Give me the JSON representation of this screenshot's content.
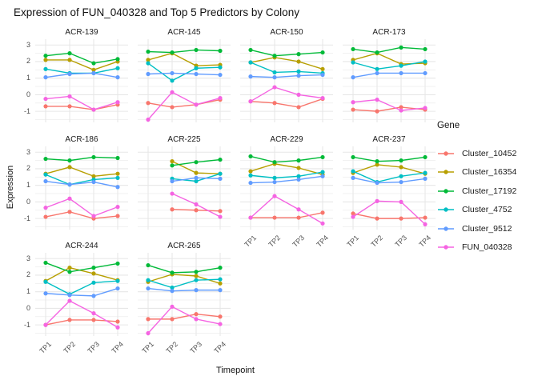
{
  "title": "Expression of FUN_040328 and Top 5 Predictors by Colony",
  "chart_data": {
    "type": "line",
    "facet_by": "Colony",
    "categories": [
      "TP1",
      "TP2",
      "TP3",
      "TP4"
    ],
    "xlabel": "Timepoint",
    "ylabel": "Expression",
    "legend_title": "Gene",
    "legend_position": "right",
    "ylim": [
      -1.67,
      3.35
    ],
    "yticks": [
      3,
      2,
      1,
      0,
      -1
    ],
    "yticks_minor": [
      2.5,
      1.5,
      0.5,
      -0.5,
      -1.5
    ],
    "grid": true,
    "point_marker": "circle",
    "series": [
      {
        "name": "Cluster_10452",
        "color": "#F8766D"
      },
      {
        "name": "Cluster_16354",
        "color": "#B79F00"
      },
      {
        "name": "Cluster_17192",
        "color": "#00BA38"
      },
      {
        "name": "Cluster_4752",
        "color": "#00BFC4"
      },
      {
        "name": "Cluster_9512",
        "color": "#619CFF"
      },
      {
        "name": "FUN_040328",
        "color": "#F564E2"
      }
    ],
    "facets": [
      {
        "name": "ACR-139",
        "values": {
          "Cluster_10452": [
            -0.7,
            -0.7,
            -0.9,
            -0.6
          ],
          "Cluster_16354": [
            2.1,
            2.1,
            1.5,
            2.0
          ],
          "Cluster_17192": [
            2.35,
            2.5,
            1.9,
            2.15
          ],
          "Cluster_4752": [
            1.55,
            1.3,
            1.3,
            1.6
          ],
          "Cluster_9512": [
            1.05,
            1.25,
            1.3,
            1.05
          ],
          "FUN_040328": [
            -0.25,
            -0.1,
            -0.9,
            -0.45
          ]
        }
      },
      {
        "name": "ACR-145",
        "values": {
          "Cluster_10452": [
            -0.5,
            -0.75,
            -0.6,
            -0.3
          ],
          "Cluster_16354": [
            2.1,
            2.5,
            1.75,
            1.8
          ],
          "Cluster_17192": [
            2.6,
            2.55,
            2.7,
            2.65
          ],
          "Cluster_4752": [
            1.9,
            0.85,
            1.6,
            1.65
          ],
          "Cluster_9512": [
            1.25,
            1.3,
            1.25,
            1.2
          ],
          "FUN_040328": [
            -1.5,
            0.15,
            -0.6,
            -0.2
          ]
        }
      },
      {
        "name": "ACR-150",
        "values": {
          "Cluster_10452": [
            -0.4,
            -0.5,
            -0.75,
            -0.25
          ],
          "Cluster_16354": [
            1.95,
            2.25,
            2.0,
            1.55
          ],
          "Cluster_17192": [
            2.7,
            2.35,
            2.45,
            2.55
          ],
          "Cluster_4752": [
            1.95,
            1.35,
            1.4,
            1.3
          ],
          "Cluster_9512": [
            1.1,
            1.05,
            1.15,
            1.2
          ],
          "FUN_040328": [
            -0.4,
            0.45,
            0.0,
            -0.2
          ]
        }
      },
      {
        "name": "ACR-173",
        "values": {
          "Cluster_10452": [
            -0.9,
            -1.0,
            -0.75,
            -0.9
          ],
          "Cluster_16354": [
            2.1,
            2.5,
            1.85,
            1.9
          ],
          "Cluster_17192": [
            2.75,
            2.55,
            2.85,
            2.75
          ],
          "Cluster_4752": [
            1.95,
            1.55,
            1.75,
            2.0
          ],
          "Cluster_9512": [
            1.05,
            1.3,
            1.3,
            1.3
          ],
          "FUN_040328": [
            -0.45,
            -0.3,
            -0.95,
            -0.8
          ]
        }
      },
      {
        "name": "ACR-186",
        "values": {
          "Cluster_10452": [
            -0.9,
            -0.6,
            -1.0,
            -0.85
          ],
          "Cluster_16354": [
            1.7,
            2.1,
            1.55,
            1.7
          ],
          "Cluster_17192": [
            2.6,
            2.5,
            2.7,
            2.65
          ],
          "Cluster_4752": [
            1.65,
            1.05,
            1.35,
            1.45
          ],
          "Cluster_9512": [
            1.25,
            1.05,
            1.2,
            0.9
          ],
          "FUN_040328": [
            -0.35,
            0.2,
            -0.85,
            -0.3
          ]
        }
      },
      {
        "name": "ACR-225",
        "values": {
          "Cluster_10452": [
            null,
            -0.45,
            -0.5,
            -0.55
          ],
          "Cluster_16354": [
            null,
            2.45,
            1.75,
            1.7
          ],
          "Cluster_17192": [
            null,
            2.2,
            2.4,
            2.55
          ],
          "Cluster_4752": [
            null,
            1.4,
            1.25,
            1.7
          ],
          "Cluster_9512": [
            null,
            1.25,
            1.45,
            1.4
          ],
          "FUN_040328": [
            null,
            0.5,
            -0.15,
            -0.9
          ]
        }
      },
      {
        "name": "ACR-229",
        "values": {
          "Cluster_10452": [
            -0.95,
            -0.95,
            -0.95,
            -0.65
          ],
          "Cluster_16354": [
            1.85,
            2.3,
            2.05,
            1.65
          ],
          "Cluster_17192": [
            2.75,
            2.4,
            2.5,
            2.7
          ],
          "Cluster_4752": [
            1.6,
            1.45,
            1.55,
            1.8
          ],
          "Cluster_9512": [
            1.15,
            1.2,
            1.35,
            1.55
          ],
          "FUN_040328": [
            -0.95,
            0.35,
            -0.45,
            -1.3
          ]
        }
      },
      {
        "name": "ACR-237",
        "values": {
          "Cluster_10452": [
            -0.7,
            -1.0,
            -1.0,
            -0.95
          ],
          "Cluster_16354": [
            1.75,
            2.25,
            2.1,
            1.7
          ],
          "Cluster_17192": [
            2.7,
            2.45,
            2.5,
            2.7
          ],
          "Cluster_4752": [
            1.85,
            1.2,
            1.55,
            1.75
          ],
          "Cluster_9512": [
            1.45,
            1.15,
            1.2,
            1.4
          ],
          "FUN_040328": [
            -0.9,
            0.05,
            0.0,
            -1.35
          ]
        }
      },
      {
        "name": "ACR-244",
        "values": {
          "Cluster_10452": [
            -1.0,
            -0.7,
            -0.7,
            -0.8
          ],
          "Cluster_16354": [
            1.65,
            2.45,
            2.1,
            1.7
          ],
          "Cluster_17192": [
            2.75,
            2.2,
            2.45,
            2.7
          ],
          "Cluster_4752": [
            1.6,
            0.85,
            1.55,
            1.65
          ],
          "Cluster_9512": [
            0.9,
            0.8,
            0.75,
            1.2
          ],
          "FUN_040328": [
            -1.0,
            0.45,
            -0.3,
            -1.15
          ]
        }
      },
      {
        "name": "ACR-265",
        "values": {
          "Cluster_10452": [
            -0.65,
            -0.65,
            -0.35,
            -0.5
          ],
          "Cluster_16354": [
            1.6,
            2.05,
            1.95,
            1.5
          ],
          "Cluster_17192": [
            2.6,
            2.15,
            2.2,
            2.45
          ],
          "Cluster_4752": [
            1.7,
            1.25,
            1.7,
            1.75
          ],
          "Cluster_9512": [
            1.2,
            1.05,
            1.1,
            1.1
          ],
          "FUN_040328": [
            -1.5,
            0.1,
            -0.65,
            -0.95
          ]
        }
      }
    ],
    "colors": {
      "grid_major": "#E7E7E7",
      "grid_minor": "#F1F1F1",
      "tick_text": "#4d4d4d",
      "text": "#1a1a1a",
      "background": "#ffffff"
    }
  }
}
